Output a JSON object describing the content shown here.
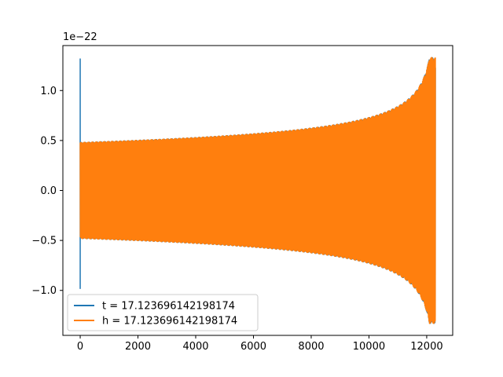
{
  "chart_data": {
    "type": "line",
    "title": "",
    "xlabel": "",
    "ylabel": "",
    "y_offset_text": "1e−22",
    "xlim": [
      -600,
      12900
    ],
    "ylim": [
      -1.45,
      1.45
    ],
    "x_ticks": [
      0,
      2000,
      4000,
      6000,
      8000,
      10000,
      12000
    ],
    "x_tick_labels": [
      "0",
      "2000",
      "4000",
      "6000",
      "8000",
      "10000",
      "12000"
    ],
    "y_ticks": [
      -1.0,
      -0.5,
      0.0,
      0.5,
      1.0
    ],
    "y_tick_labels": [
      "−1.0",
      "−0.5",
      "0.0",
      "0.5",
      "1.0"
    ],
    "grid": false,
    "legend_position": "lower-left",
    "series": [
      {
        "name": "t = 17.123696142198174",
        "color": "#1f77b4",
        "description": "brief spike near x=0 then chirp",
        "spike": {
          "x": 0,
          "y_max": 1.32,
          "y_min": -0.98
        },
        "envelope_start": 0.48,
        "envelope_end": 1.33,
        "x_start": 0,
        "x_end": 12300
      },
      {
        "name": "h = 17.123696142198174",
        "color": "#ff7f0e",
        "description": "chirp waveform with growing amplitude",
        "envelope_start": 0.48,
        "envelope_end": 1.33,
        "x_start": 0,
        "x_end": 12300
      }
    ]
  }
}
